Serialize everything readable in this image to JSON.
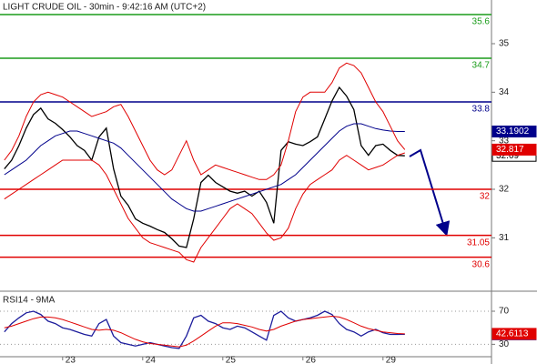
{
  "chart_data": [
    {
      "type": "line",
      "title": "LIGHT CRUDE OIL - 30min - 9:42:16 AM (UTC+2)",
      "xlim": [
        -0.6,
        66.9
      ],
      "ylim": [
        29.9,
        35.9
      ],
      "yticks": [
        31,
        32,
        33,
        34,
        35
      ],
      "levels": [
        {
          "value": 35.6,
          "color": "#1a9c1a"
        },
        {
          "value": 34.7,
          "color": "#1a9c1a"
        },
        {
          "value": 33.8,
          "color": "#00008b"
        },
        {
          "value": 32,
          "color": "#e00000"
        },
        {
          "value": 31.05,
          "color": "#e00000"
        },
        {
          "value": 30.6,
          "color": "#e00000"
        }
      ],
      "series": [
        {
          "color": "#000000",
          "tag": true,
          "values": [
            32.42,
            32.6,
            32.9,
            33.26,
            33.54,
            33.67,
            33.45,
            33.36,
            33.23,
            33.08,
            32.9,
            32.8,
            32.6,
            33.08,
            33.26,
            32.42,
            31.86,
            31.67,
            31.39,
            31.3,
            31.24,
            31.17,
            31.11,
            30.98,
            30.83,
            30.8,
            31.39,
            32.14,
            32.29,
            32.14,
            32.05,
            31.96,
            31.92,
            31.96,
            31.86,
            31.96,
            31.73,
            31.3,
            32.8,
            32.98,
            32.93,
            32.9,
            32.98,
            33.08,
            33.45,
            33.82,
            34.1,
            33.92,
            33.64,
            32.9,
            32.7,
            32.9,
            32.93,
            32.8,
            32.7,
            32.69
          ]
        },
        {
          "color": "#00008b",
          "tag": true,
          "values": [
            32.3,
            32.4,
            32.5,
            32.6,
            32.75,
            32.9,
            33.0,
            33.1,
            33.15,
            33.2,
            33.2,
            33.15,
            33.1,
            33.05,
            33.0,
            32.95,
            32.85,
            32.7,
            32.55,
            32.4,
            32.25,
            32.1,
            31.95,
            31.8,
            31.7,
            31.6,
            31.55,
            31.55,
            31.6,
            31.65,
            31.7,
            31.75,
            31.8,
            31.85,
            31.9,
            31.95,
            32.0,
            32.05,
            32.1,
            32.2,
            32.3,
            32.45,
            32.6,
            32.75,
            32.9,
            33.05,
            33.2,
            33.3,
            33.35,
            33.35,
            33.3,
            33.25,
            33.22,
            33.2,
            33.19,
            33.1902
          ]
        },
        {
          "color": "#e00000",
          "tag": true,
          "values": [
            32.6,
            32.8,
            33.1,
            33.5,
            33.8,
            33.95,
            34.0,
            33.95,
            33.9,
            33.8,
            33.7,
            33.6,
            33.5,
            33.55,
            33.6,
            33.7,
            33.75,
            33.5,
            33.2,
            32.9,
            32.6,
            32.4,
            32.3,
            32.4,
            32.7,
            33.0,
            32.6,
            32.3,
            32.4,
            32.5,
            32.45,
            32.4,
            32.35,
            32.3,
            32.25,
            32.2,
            32.2,
            32.3,
            32.5,
            33.0,
            33.6,
            33.9,
            34.0,
            34.0,
            34.0,
            34.2,
            34.5,
            34.6,
            34.55,
            34.4,
            34.1,
            33.8,
            33.6,
            33.3,
            33.0,
            32.817
          ]
        },
        {
          "color": "#e00000",
          "tag": false,
          "values": [
            31.8,
            31.9,
            32.0,
            32.1,
            32.2,
            32.3,
            32.4,
            32.5,
            32.6,
            32.6,
            32.6,
            32.6,
            32.6,
            32.5,
            32.3,
            32.0,
            31.7,
            31.4,
            31.2,
            31.0,
            30.9,
            30.85,
            30.8,
            30.75,
            30.7,
            30.55,
            30.5,
            30.8,
            31.0,
            31.2,
            31.4,
            31.6,
            31.7,
            31.6,
            31.5,
            31.3,
            31.1,
            30.95,
            31.0,
            31.2,
            31.6,
            31.9,
            32.1,
            32.2,
            32.3,
            32.4,
            32.6,
            32.7,
            32.6,
            32.5,
            32.4,
            32.45,
            32.5,
            32.6,
            32.7,
            32.75
          ]
        }
      ]
    },
    {
      "type": "line",
      "title": "RSI14 - 9MA",
      "xlim": [
        -0.6,
        66.9
      ],
      "ylim": [
        15,
        92
      ],
      "yticks": [
        70,
        30
      ],
      "xticks": [
        {
          "value": 8,
          "label": "23"
        },
        {
          "value": 19,
          "label": "24"
        },
        {
          "value": 30,
          "label": "25"
        },
        {
          "value": 41,
          "label": "26"
        },
        {
          "value": 52,
          "label": "29"
        }
      ],
      "series": [
        {
          "color": "#1c1c9c",
          "tag": true,
          "values": [
            45,
            55,
            62,
            68,
            70,
            66,
            58,
            55,
            50,
            48,
            45,
            42,
            40,
            55,
            60,
            40,
            32,
            30,
            28,
            30,
            32,
            30,
            28,
            26,
            25,
            40,
            62,
            65,
            58,
            55,
            50,
            48,
            52,
            50,
            45,
            40,
            35,
            65,
            70,
            62,
            58,
            60,
            62,
            65,
            70,
            66,
            55,
            48,
            45,
            40,
            45,
            48,
            44,
            42,
            42,
            42.1248
          ]
        },
        {
          "color": "#e00000",
          "tag": true,
          "values": [
            50,
            52,
            55,
            58,
            61,
            63,
            63,
            62,
            60,
            57,
            54,
            51,
            48,
            47,
            48,
            47,
            44,
            40,
            36,
            33,
            31,
            30,
            29,
            28,
            27,
            29,
            34,
            40,
            46,
            52,
            56,
            56,
            55,
            53,
            51,
            48,
            46,
            48,
            52,
            55,
            58,
            60,
            61,
            62,
            63,
            64,
            63,
            60,
            56,
            52,
            49,
            47,
            45,
            44,
            43,
            42.6113
          ]
        }
      ]
    }
  ]
}
